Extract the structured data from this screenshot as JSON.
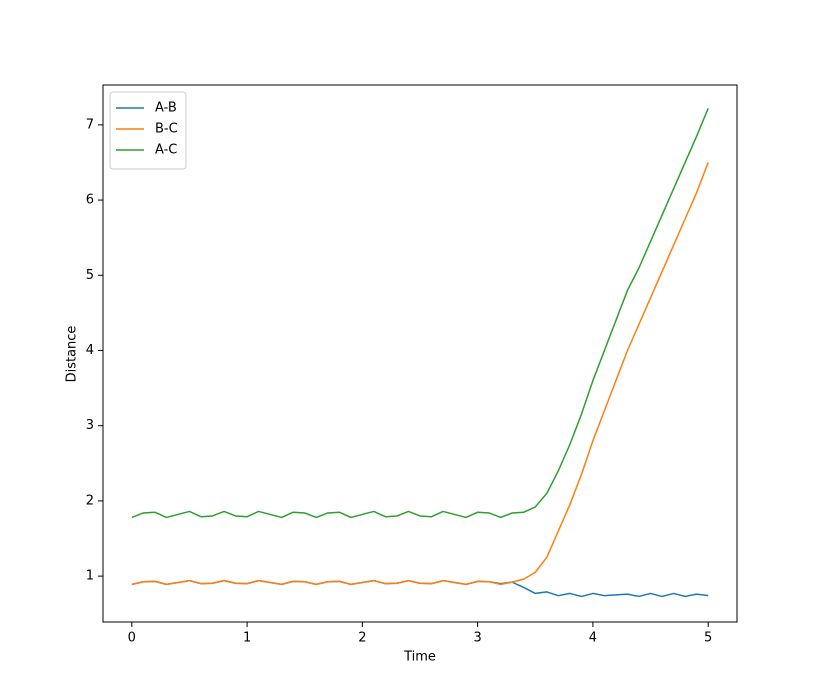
{
  "chart_data": {
    "type": "line",
    "x_label": "Time",
    "y_label": "Distance",
    "x": [
      0,
      0.1,
      0.2,
      0.3,
      0.4,
      0.5,
      0.6,
      0.7,
      0.8,
      0.9,
      1.0,
      1.1,
      1.2,
      1.3,
      1.4,
      1.5,
      1.6,
      1.7,
      1.8,
      1.9,
      2.0,
      2.1,
      2.2,
      2.3,
      2.4,
      2.5,
      2.6,
      2.7,
      2.8,
      2.9,
      3.0,
      3.1,
      3.2,
      3.3,
      3.4,
      3.5,
      3.6,
      3.7,
      3.8,
      3.9,
      4.0,
      4.1,
      4.2,
      4.3,
      4.4,
      4.5,
      4.6,
      4.7,
      4.8,
      4.9,
      5.0
    ],
    "series": [
      {
        "name": "A-B",
        "color": "#1f77b4",
        "values": [
          0.89,
          0.925,
          0.93,
          0.89,
          0.915,
          0.94,
          0.9,
          0.905,
          0.94,
          0.905,
          0.9,
          0.94,
          0.915,
          0.89,
          0.93,
          0.925,
          0.89,
          0.925,
          0.93,
          0.89,
          0.915,
          0.94,
          0.9,
          0.905,
          0.94,
          0.905,
          0.9,
          0.94,
          0.915,
          0.89,
          0.93,
          0.925,
          0.9,
          0.92,
          0.85,
          0.77,
          0.79,
          0.74,
          0.77,
          0.73,
          0.77,
          0.74,
          0.75,
          0.76,
          0.73,
          0.77,
          0.73,
          0.77,
          0.73,
          0.76,
          0.74
        ]
      },
      {
        "name": "B-C",
        "color": "#ff7f0e",
        "values": [
          0.89,
          0.925,
          0.93,
          0.89,
          0.915,
          0.94,
          0.9,
          0.905,
          0.94,
          0.905,
          0.9,
          0.94,
          0.915,
          0.89,
          0.93,
          0.925,
          0.89,
          0.925,
          0.93,
          0.89,
          0.915,
          0.94,
          0.9,
          0.905,
          0.94,
          0.905,
          0.9,
          0.94,
          0.915,
          0.89,
          0.93,
          0.925,
          0.89,
          0.92,
          0.96,
          1.05,
          1.25,
          1.6,
          1.95,
          2.35,
          2.8,
          3.2,
          3.6,
          4.0,
          4.35,
          4.7,
          5.05,
          5.4,
          5.75,
          6.1,
          6.5
        ]
      },
      {
        "name": "A-C",
        "color": "#2ca02c",
        "values": [
          1.78,
          1.84,
          1.85,
          1.78,
          1.82,
          1.86,
          1.79,
          1.8,
          1.86,
          1.8,
          1.79,
          1.86,
          1.82,
          1.78,
          1.85,
          1.84,
          1.78,
          1.84,
          1.85,
          1.78,
          1.82,
          1.86,
          1.79,
          1.8,
          1.86,
          1.8,
          1.79,
          1.86,
          1.82,
          1.78,
          1.85,
          1.84,
          1.78,
          1.84,
          1.85,
          1.92,
          2.1,
          2.4,
          2.75,
          3.15,
          3.6,
          4.0,
          4.4,
          4.8,
          5.1,
          5.45,
          5.8,
          6.15,
          6.5,
          6.85,
          7.22
        ]
      }
    ],
    "xlim": [
      -0.25,
      5.25
    ],
    "ylim": [
      0.39,
      7.53
    ],
    "xticks": [
      0,
      1,
      2,
      3,
      4,
      5
    ],
    "yticks": [
      1,
      2,
      3,
      4,
      5,
      6,
      7
    ],
    "legend": "upper left",
    "grid": false
  }
}
